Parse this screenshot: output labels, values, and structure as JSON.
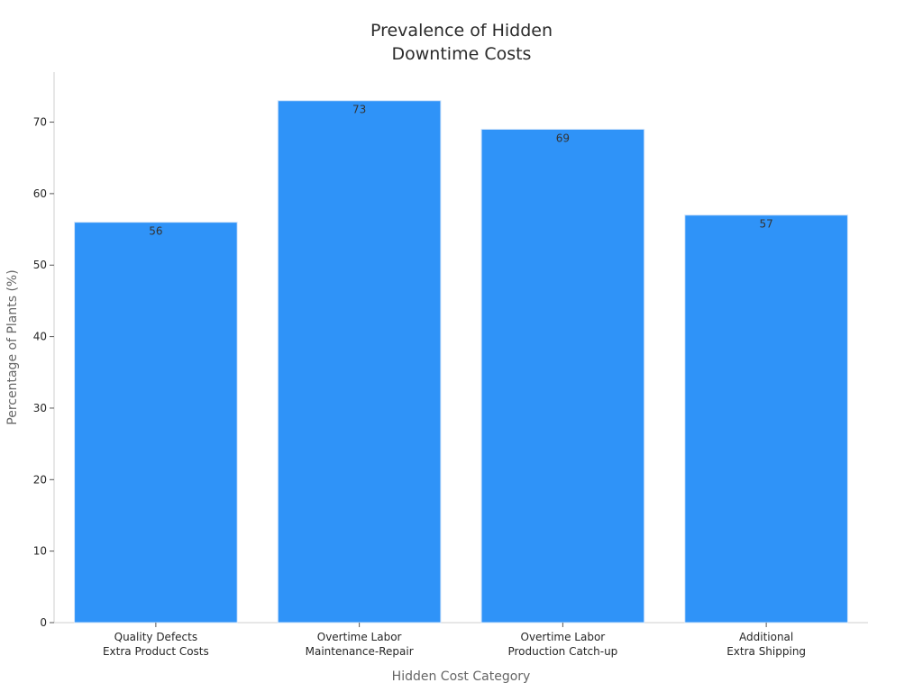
{
  "chart_data": {
    "type": "bar",
    "title": "Prevalence of Hidden\nDowntime Costs",
    "xlabel": "Hidden Cost Category",
    "ylabel": "Percentage of Plants (%)",
    "categories": [
      "Quality Defects\nExtra Product Costs",
      "Overtime Labor\nMaintenance-Repair",
      "Overtime Labor\nProduction Catch-up",
      "Additional\nExtra Shipping"
    ],
    "values": [
      56,
      73,
      69,
      57
    ],
    "ylim": [
      0,
      77
    ],
    "yticks": [
      0,
      10,
      20,
      30,
      40,
      50,
      60,
      70
    ],
    "grid": false,
    "legend": "none",
    "bar_color": "#2f93f8",
    "bar_edge_color": "#cfe3fa"
  }
}
